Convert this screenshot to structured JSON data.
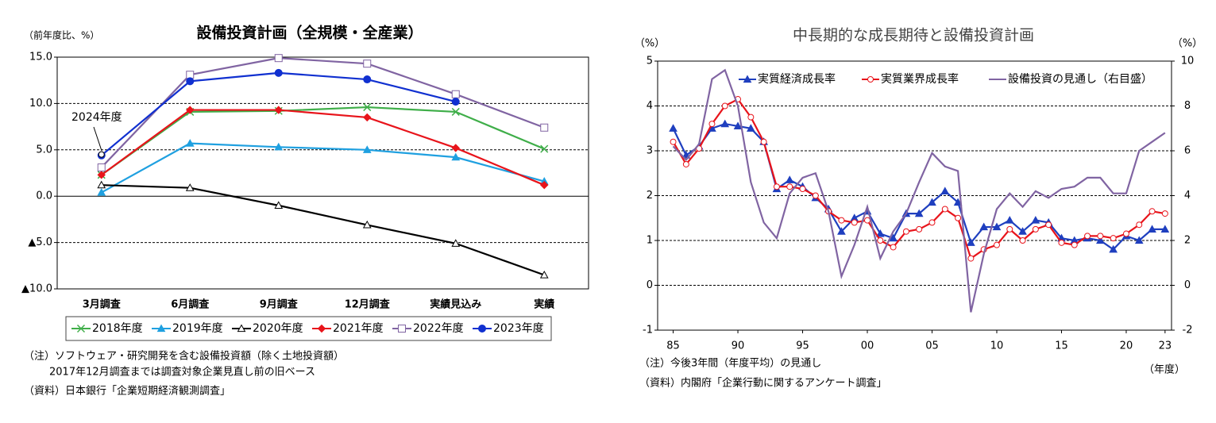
{
  "chart_data": [
    {
      "type": "line",
      "title": "設備投資計画（全規模・全産業）",
      "y_label": "（前年度比、%）",
      "categories": [
        "3月調査",
        "6月調査",
        "9月調査",
        "12月調査",
        "実績見込み",
        "実績"
      ],
      "series": [
        {
          "name": "2018年度",
          "color": "#3fae49",
          "marker": "cross",
          "values": [
            2.3,
            9.1,
            9.2,
            9.6,
            9.1,
            5.1
          ]
        },
        {
          "name": "2019年度",
          "color": "#1fa0e0",
          "marker": "triangle",
          "values": [
            0.4,
            5.7,
            5.3,
            5.0,
            4.2,
            1.6
          ]
        },
        {
          "name": "2020年度",
          "color": "#000000",
          "marker": "triangle-open",
          "values": [
            1.2,
            0.9,
            -1.0,
            -3.1,
            -5.1,
            -8.5
          ]
        },
        {
          "name": "2021年度",
          "color": "#e8141b",
          "marker": "diamond",
          "values": [
            2.3,
            9.3,
            9.3,
            8.5,
            5.2,
            1.2
          ]
        },
        {
          "name": "2022年度",
          "color": "#8064a2",
          "marker": "square-open",
          "values": [
            3.1,
            13.1,
            14.9,
            14.3,
            11.0,
            7.4
          ]
        },
        {
          "name": "2023年度",
          "color": "#1030d0",
          "marker": "circle",
          "values": [
            4.4,
            12.4,
            13.3,
            12.6,
            10.2,
            null
          ]
        }
      ],
      "annotations": [
        {
          "text": "2024年度",
          "value": 4.5
        }
      ],
      "ylim": [
        -10,
        15
      ],
      "yticks": [
        {
          "value": 15,
          "label": "15.0"
        },
        {
          "value": 10,
          "label": "10.0"
        },
        {
          "value": 5,
          "label": "5.0"
        },
        {
          "value": 0,
          "label": "0.0"
        },
        {
          "value": -5,
          "label": "▲5.0"
        },
        {
          "value": -10,
          "label": "▲10.0"
        }
      ],
      "grid": true,
      "legend": "bottom",
      "notes": [
        "（注）ソフトウェア・研究開発を含む設備投資額（除く土地投資額）",
        "2017年12月調査までは調査対象企業見直し前の旧ベース",
        "（資料）日本銀行「企業短期経済観測調査」"
      ]
    },
    {
      "type": "line",
      "title": "中長期的な成長期待と設備投資計画",
      "y_label": "（%）",
      "y2_label": "（%）",
      "x_label": "（年度）",
      "x": [
        1985,
        1986,
        1987,
        1988,
        1989,
        1990,
        1991,
        1992,
        1993,
        1994,
        1995,
        1996,
        1997,
        1998,
        1999,
        2000,
        2001,
        2002,
        2003,
        2004,
        2005,
        2006,
        2007,
        2008,
        2009,
        2010,
        2011,
        2012,
        2013,
        2014,
        2015,
        2016,
        2017,
        2018,
        2019,
        2020,
        2021,
        2022,
        2023
      ],
      "series": [
        {
          "name": "実質経済成長率",
          "color": "#1f3fbf",
          "marker": "triangle",
          "values": [
            3.5,
            2.9,
            3.1,
            3.5,
            3.6,
            3.55,
            3.5,
            3.2,
            2.15,
            2.35,
            2.2,
            1.95,
            1.7,
            1.2,
            1.5,
            1.65,
            1.15,
            1.05,
            1.6,
            1.6,
            1.85,
            2.1,
            1.85,
            0.95,
            1.3,
            1.3,
            1.45,
            1.2,
            1.45,
            1.4,
            1.05,
            1.0,
            1.05,
            1.0,
            0.8,
            1.1,
            1.0,
            1.25,
            1.25
          ]
        },
        {
          "name": "実質業界成長率",
          "color": "#e8141b",
          "marker": "circle-open",
          "values": [
            3.2,
            2.7,
            3.05,
            3.6,
            4.0,
            4.15,
            3.75,
            3.2,
            2.2,
            2.2,
            2.15,
            2.0,
            1.65,
            1.45,
            1.4,
            1.45,
            1.0,
            0.85,
            1.2,
            1.25,
            1.4,
            1.7,
            1.5,
            0.6,
            0.8,
            0.9,
            1.25,
            1.0,
            1.25,
            1.35,
            0.95,
            0.9,
            1.1,
            1.1,
            1.05,
            1.15,
            1.35,
            1.65,
            1.6
          ]
        },
        {
          "name": "設備投資の見通し（右目盛）",
          "color": "#8064a2",
          "axis": "y2",
          "values": [
            6.2,
            5.6,
            6.3,
            9.2,
            9.6,
            8.0,
            4.6,
            2.8,
            2.1,
            4.1,
            4.8,
            5.0,
            3.3,
            0.4,
            1.8,
            3.5,
            1.2,
            2.4,
            3.2,
            4.6,
            5.9,
            5.3,
            5.1,
            -1.2,
            1.4,
            3.4,
            4.1,
            3.5,
            4.2,
            3.9,
            4.3,
            4.4,
            4.8,
            4.8,
            4.1,
            4.1,
            6.0,
            6.4,
            6.8
          ]
        }
      ],
      "xlim": [
        1983.8,
        2023.5
      ],
      "xticks": [
        {
          "value": 1985,
          "label": "85"
        },
        {
          "value": 1990,
          "label": "90"
        },
        {
          "value": 1995,
          "label": "95"
        },
        {
          "value": 2000,
          "label": "00"
        },
        {
          "value": 2005,
          "label": "05"
        },
        {
          "value": 2010,
          "label": "10"
        },
        {
          "value": 2015,
          "label": "15"
        },
        {
          "value": 2020,
          "label": "20"
        },
        {
          "value": 2023,
          "label": "23"
        }
      ],
      "ylim": [
        -1,
        5
      ],
      "yticks": [
        -1,
        0,
        1,
        2,
        3,
        4,
        5
      ],
      "y2lim": [
        -2,
        10
      ],
      "y2ticks": [
        -2,
        0,
        2,
        4,
        6,
        8,
        10
      ],
      "grid": true,
      "legend": "top",
      "notes": [
        "（注）今後3年間（年度平均）の見通し",
        "（資料）内閣府「企業行動に関するアンケート調査」"
      ]
    }
  ]
}
